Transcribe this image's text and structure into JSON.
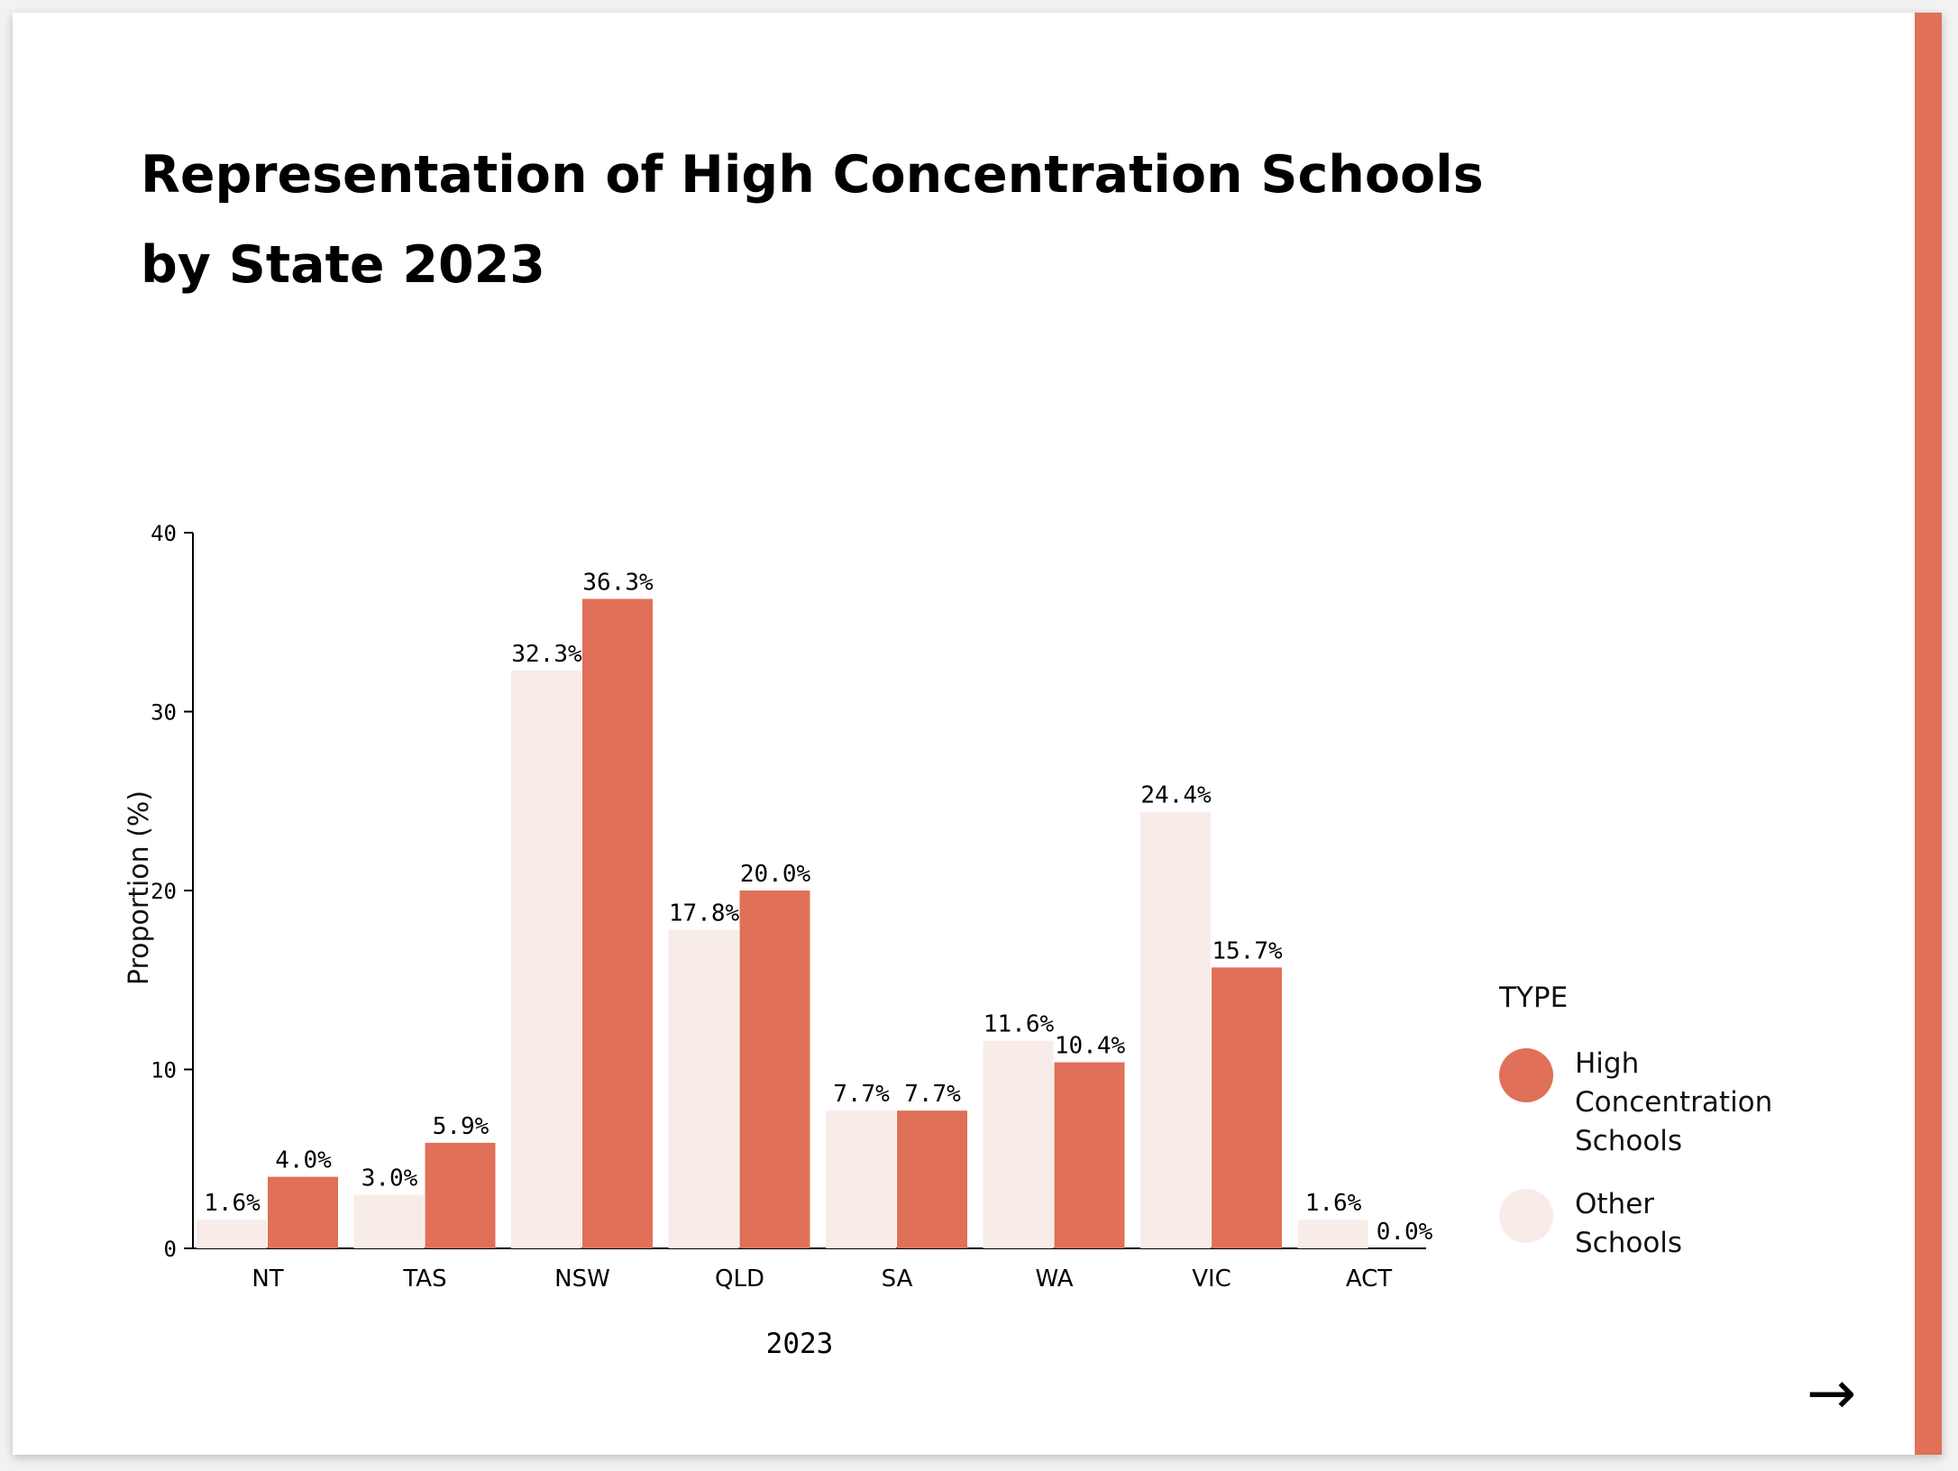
{
  "chart_data": {
    "type": "bar",
    "title": "Representation of High Concentration Schools by State 2023",
    "title_lines": [
      "Representation of High Concentration Schools",
      "by State 2023"
    ],
    "categories": [
      "NT",
      "TAS",
      "NSW",
      "QLD",
      "SA",
      "WA",
      "VIC",
      "ACT"
    ],
    "series": [
      {
        "name": "Other Schools",
        "values": [
          1.6,
          3.0,
          32.3,
          17.8,
          7.7,
          11.6,
          24.4,
          1.6
        ],
        "labels": [
          "1.6%",
          "3.0%",
          "32.3%",
          "17.8%",
          "7.7%",
          "11.6%",
          "24.4%",
          "1.6%"
        ],
        "color": "#f8ece8"
      },
      {
        "name": "High Concentration Schools",
        "values": [
          4.0,
          5.9,
          36.3,
          20.0,
          7.7,
          10.4,
          15.7,
          0.0
        ],
        "labels": [
          "4.0%",
          "5.9%",
          "36.3%",
          "20.0%",
          "7.7%",
          "10.4%",
          "15.7%",
          "0.0%"
        ],
        "color": "#e07058"
      }
    ],
    "xlabel": "2023",
    "ylabel": "Proportion (%)",
    "ylim": [
      0,
      40
    ],
    "yticks": [
      0,
      10,
      20,
      30,
      40
    ],
    "legend": {
      "title": "TYPE",
      "position": "right",
      "entries": [
        {
          "lines": [
            "High",
            "Concentration",
            "Schools"
          ],
          "color": "#e07058"
        },
        {
          "lines": [
            "Other",
            "Schools"
          ],
          "color": "#f8ece8"
        }
      ]
    },
    "grid": false
  },
  "navigation": {
    "next_icon": "arrow-right-icon",
    "next_glyph": "→"
  },
  "colors": {
    "accent": "#e07058",
    "other": "#f8ece8"
  }
}
